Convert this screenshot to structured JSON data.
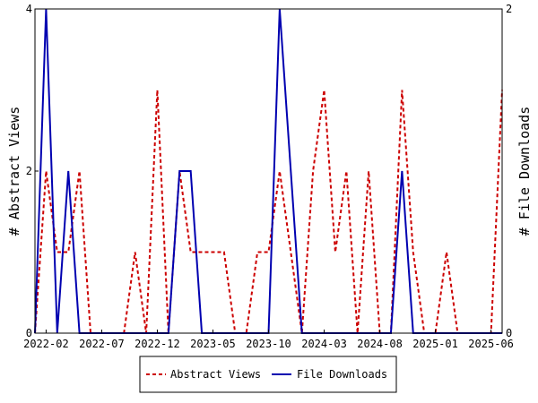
{
  "chart_data": {
    "type": "line",
    "x": [
      "2022-01",
      "2022-02",
      "2022-03",
      "2022-04",
      "2022-05",
      "2022-06",
      "2022-07",
      "2022-08",
      "2022-09",
      "2022-10",
      "2022-11",
      "2022-12",
      "2023-01",
      "2023-02",
      "2023-03",
      "2023-04",
      "2023-05",
      "2023-06",
      "2023-07",
      "2023-08",
      "2023-09",
      "2023-10",
      "2023-11",
      "2023-12",
      "2024-01",
      "2024-02",
      "2024-03",
      "2024-04",
      "2024-05",
      "2024-06",
      "2024-07",
      "2024-08",
      "2024-09",
      "2024-10",
      "2024-11",
      "2024-12",
      "2025-01",
      "2025-02",
      "2025-03",
      "2025-04",
      "2025-05",
      "2025-06",
      "2025-07"
    ],
    "xtick_labels": [
      "2022-02",
      "2022-07",
      "2022-12",
      "2023-05",
      "2023-10",
      "2024-03",
      "2024-08",
      "2025-01",
      "2025-06"
    ],
    "xtick_positions": [
      1,
      6,
      11,
      16,
      21,
      26,
      31,
      36,
      41
    ],
    "left_axis": {
      "label": "# Abstract Views",
      "ylim": [
        0,
        4
      ],
      "ticks": [
        "0",
        "2",
        "4"
      ]
    },
    "right_axis": {
      "label": "# File Downloads",
      "ylim": [
        0,
        2
      ],
      "ticks": [
        "0",
        "2"
      ]
    },
    "series": [
      {
        "name": "Abstract Views",
        "axis": "left",
        "color": "#cc0000",
        "style": "dashed",
        "values": [
          0,
          2,
          1,
          1,
          2,
          0,
          0,
          0,
          0,
          1,
          0,
          3,
          0,
          2,
          1,
          1,
          1,
          1,
          0,
          0,
          1,
          1,
          2,
          1,
          0,
          2,
          3,
          1,
          2,
          0,
          2,
          0,
          0,
          3,
          1,
          0,
          0,
          1,
          0,
          0,
          0,
          0,
          3
        ]
      },
      {
        "name": "File Downloads",
        "axis": "right",
        "color": "#0000b0",
        "style": "solid",
        "values": [
          0,
          2,
          0,
          1,
          0,
          0,
          0,
          0,
          0,
          0,
          0,
          0,
          0,
          1,
          1,
          0,
          0,
          0,
          0,
          0,
          0,
          0,
          2,
          1,
          0,
          0,
          0,
          0,
          0,
          0,
          0,
          0,
          0,
          1,
          0,
          0,
          0,
          0,
          0,
          0,
          0,
          0,
          0
        ]
      }
    ],
    "legend": {
      "placement": "bottom-center",
      "entries": [
        "Abstract Views",
        "File Downloads"
      ]
    },
    "grid": false
  }
}
